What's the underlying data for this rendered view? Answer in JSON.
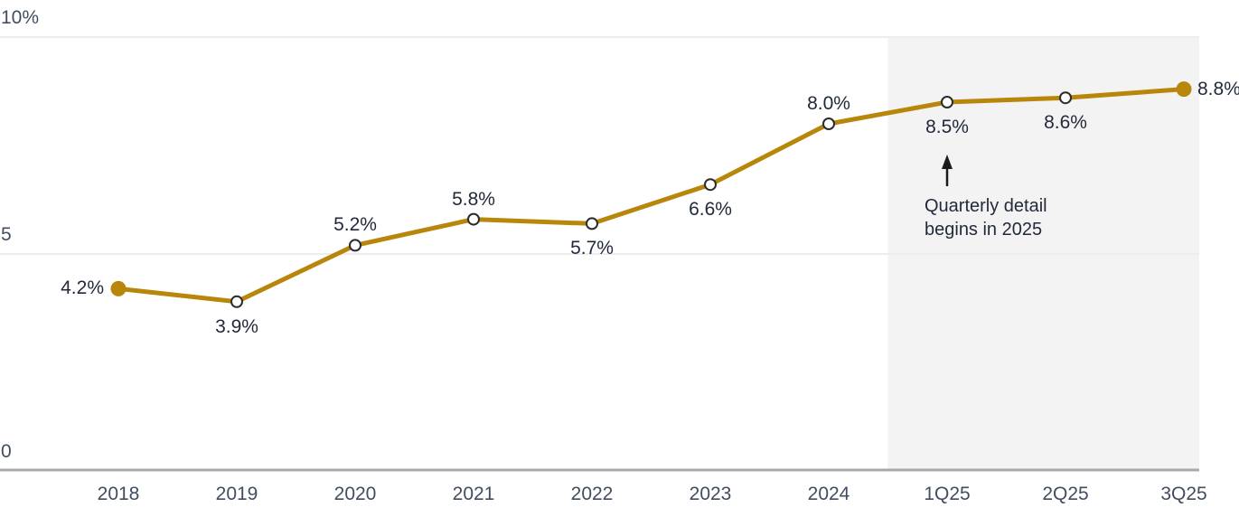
{
  "chart_data": {
    "type": "line",
    "title": "",
    "xlabel": "",
    "ylabel": "",
    "categories": [
      "2018",
      "2019",
      "2020",
      "2021",
      "2022",
      "2023",
      "2024",
      "1Q25",
      "2Q25",
      "3Q25"
    ],
    "series": [
      {
        "name": "rate-percent",
        "values": [
          4.2,
          3.9,
          5.2,
          5.8,
          5.7,
          6.6,
          8.0,
          8.5,
          8.6,
          8.8
        ]
      }
    ],
    "point_labels": [
      "4.2%",
      "3.9%",
      "5.2%",
      "5.8%",
      "5.7%",
      "6.6%",
      "8.0%",
      "8.5%",
      "8.6%",
      "8.8%"
    ],
    "label_positions": [
      "left",
      "below",
      "above",
      "above",
      "below",
      "below",
      "above",
      "below",
      "below",
      "right"
    ],
    "point_styles": [
      "filled",
      "open",
      "open",
      "open",
      "open",
      "open",
      "open",
      "open",
      "open",
      "filled"
    ],
    "y_ticks": [
      {
        "label": "10%",
        "value": 10
      },
      {
        "label": "5",
        "value": 5
      },
      {
        "label": "0",
        "value": 0
      }
    ],
    "ylim": [
      0,
      10
    ],
    "grid": "horizontal-gridlines-at-5-and-10",
    "legend": "none",
    "colors": {
      "line": "#B8860B",
      "marker_open_fill": "#ffffff",
      "marker_open_stroke": "#2b2b2b",
      "gridline": "#ededed",
      "axis_line": "#a9a9a9",
      "shade": "#f3f3f3",
      "label_text": "#222a3a",
      "tick_text": "#424d5f",
      "arrow": "#1c1c1c"
    },
    "shaded_region": {
      "starts_between": [
        "2024",
        "1Q25"
      ],
      "ends": "right-edge-of-plot",
      "color": "#f3f3f3"
    },
    "annotation": {
      "lines": [
        "Quarterly detail",
        "begins in 2025"
      ],
      "arrow": "up-arrow",
      "target_category": "1Q25"
    }
  }
}
